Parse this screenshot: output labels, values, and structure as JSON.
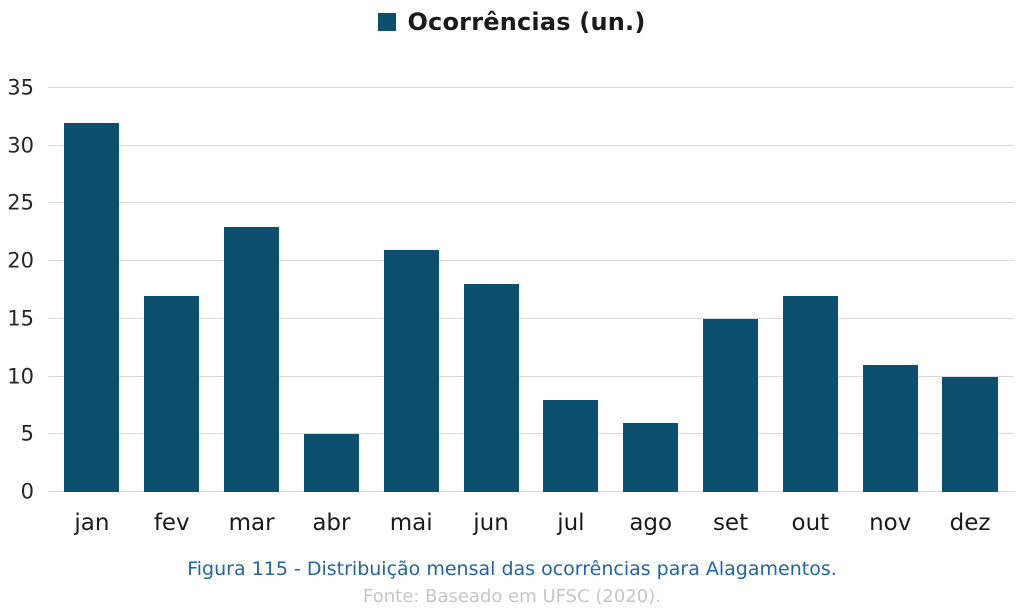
{
  "chart_data": {
    "type": "bar",
    "title": "",
    "legend": "Ocorrências (un.)",
    "categories": [
      "jan",
      "fev",
      "mar",
      "abr",
      "mai",
      "jun",
      "jul",
      "ago",
      "set",
      "out",
      "nov",
      "dez"
    ],
    "values": [
      32,
      17,
      23,
      5,
      21,
      18,
      8,
      6,
      15,
      17,
      11,
      10
    ],
    "xlabel": "",
    "ylabel": "",
    "ylim": [
      0,
      35
    ],
    "yticks": [
      0,
      5,
      10,
      15,
      20,
      25,
      30,
      35
    ],
    "grid": true,
    "legend_position": "top-center"
  },
  "caption": {
    "title": "Figura 115 - Distribuição mensal das ocorrências para Alagamentos.",
    "source": "Fonte: Baseado em UFSC (2020)."
  },
  "colors": {
    "bar": "#0d4f6e",
    "grid": "#d9d9d9",
    "axis_text": "#262626",
    "caption": "#1f63ad",
    "source": "#c6c6c6"
  }
}
